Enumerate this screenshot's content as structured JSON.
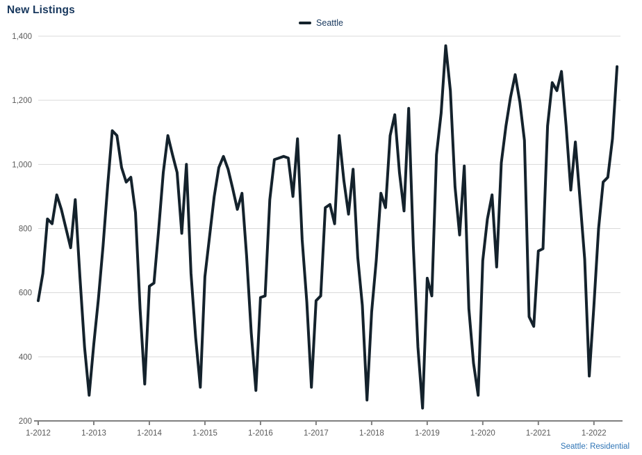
{
  "title": "New Listings",
  "legend": {
    "series_label": "Seattle"
  },
  "footer": {
    "caption": "Seattle: Residential"
  },
  "colors": {
    "title": "#17375d",
    "axis_label": "#595959",
    "gridline": "#d9d9d9",
    "axis_line": "#7f7f7f",
    "series_line": "#14222c",
    "footnote": "#2e74b5",
    "background": "#ffffff"
  },
  "chart_data": {
    "type": "line",
    "title": "New Listings",
    "xlabel": "",
    "ylabel": "",
    "ylim": [
      200,
      1400
    ],
    "grid": "horizontal",
    "legend_position": "top-center",
    "y_tick_labels": [
      "1,400",
      "1,200",
      "1,000",
      "800",
      "600",
      "400",
      "200"
    ],
    "y_tick_values": [
      1400,
      1200,
      1000,
      800,
      600,
      400,
      200
    ],
    "x_tick_labels": [
      "1-2012",
      "1-2013",
      "1-2014",
      "1-2015",
      "1-2016",
      "1-2017",
      "1-2018",
      "1-2019",
      "1-2020",
      "1-2021",
      "1-2022"
    ],
    "x_tick_every": 12,
    "series": [
      {
        "name": "Seattle",
        "color": "#14222c",
        "values": [
          575,
          660,
          830,
          815,
          905,
          860,
          800,
          740,
          890,
          650,
          430,
          280,
          440,
          580,
          745,
          935,
          1105,
          1090,
          990,
          945,
          960,
          850,
          550,
          315,
          620,
          630,
          795,
          975,
          1090,
          1030,
          975,
          785,
          1000,
          660,
          460,
          305,
          650,
          775,
          900,
          990,
          1025,
          985,
          925,
          860,
          910,
          715,
          475,
          295,
          585,
          590,
          890,
          1015,
          1020,
          1025,
          1020,
          900,
          1080,
          765,
          570,
          305,
          575,
          590,
          865,
          875,
          815,
          1090,
          950,
          845,
          985,
          710,
          560,
          265,
          540,
          700,
          910,
          865,
          1090,
          1155,
          975,
          855,
          1175,
          745,
          430,
          240,
          645,
          590,
          1030,
          1160,
          1370,
          1230,
          930,
          780,
          995,
          550,
          380,
          280,
          700,
          830,
          905,
          680,
          1005,
          1120,
          1210,
          1280,
          1195,
          1075,
          525,
          495,
          730,
          737,
          1120,
          1255,
          1230,
          1290,
          1120,
          920,
          1070,
          890,
          705,
          340,
          560,
          800,
          945,
          960,
          1080,
          1305
        ]
      }
    ],
    "footnote": "Seattle: Residential"
  }
}
